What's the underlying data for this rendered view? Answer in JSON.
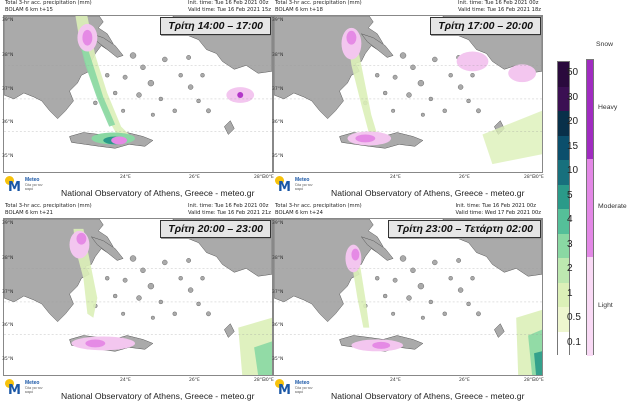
{
  "panels": [
    {
      "meta_left": [
        "Total 3-hr acc. precipitation (mm)",
        "BOLAM 6 km t+15"
      ],
      "meta_right": [
        "Init. time: Tue 16 Feb 2021 00z",
        "Valid time: Tue 16 Feb 2021 15z"
      ],
      "time_range": "Τρίτη 14:00 – 17:00",
      "footer": "National Observatory of Athens, Greece - meteo.gr"
    },
    {
      "meta_left": [
        "Total 3-hr acc. precipitation (mm)",
        "BOLAM 6 km t+18"
      ],
      "meta_right": [
        "Init. time: Tue 16 Feb 2021 00z",
        "Valid time: Tue 16 Feb 2021 18z"
      ],
      "time_range": "Τρίτη 17:00 – 20:00",
      "footer": "National Observatory of Athens, Greece - meteo.gr"
    },
    {
      "meta_left": [
        "Total 3-hr acc. precipitation (mm)",
        "BOLAM 6 km t+21"
      ],
      "meta_right": [
        "Init. time: Tue 16 Feb 2021 00z",
        "Valid time: Tue 16 Feb 2021 21z"
      ],
      "time_range": "Τρίτη 20:00 – 23:00",
      "footer": "National Observatory of Athens, Greece - meteo.gr"
    },
    {
      "meta_left": [
        "Total 3-hr acc. precipitation (mm)",
        "BOLAM 6 km t+24"
      ],
      "meta_right": [
        "Init. time: Tue 16 Feb 2021 00z",
        "Valid time: Wed 17 Feb 2021 00z"
      ],
      "time_range": "Τρίτη 23:00 – Τετάρτη 02:00",
      "footer": "National Observatory of Athens, Greece - meteo.gr"
    }
  ],
  "map_axes": {
    "lat_ticks": [
      "39°N",
      "38°N",
      "37°N",
      "36°N",
      "35°N"
    ],
    "lon_ticks": [
      "24°E",
      "26°E",
      "28°E",
      "30°E"
    ]
  },
  "logo": {
    "name": "Meteo",
    "tagline": "Όλα για τον καιρό"
  },
  "legend": {
    "precip_scale": [
      {
        "label": "50",
        "color": "#2a0a3d"
      },
      {
        "label": "30",
        "color": "#3b1053"
      },
      {
        "label": "20",
        "color": "#08304a"
      },
      {
        "label": "15",
        "color": "#0b4f6c"
      },
      {
        "label": "10",
        "color": "#17707d"
      },
      {
        "label": "5",
        "color": "#2a9a89"
      },
      {
        "label": "4",
        "color": "#55bf99"
      },
      {
        "label": "3",
        "color": "#8ad8a3"
      },
      {
        "label": "2",
        "color": "#bde8b0"
      },
      {
        "label": "1",
        "color": "#dcf0b8"
      },
      {
        "label": "0.5",
        "color": "#eef6cf"
      },
      {
        "label": "0.1",
        "color": "#ffffff"
      }
    ],
    "snow_title": "Snow",
    "snow_scale": [
      {
        "label": "Heavy",
        "color": "#a02cc0"
      },
      {
        "label": "Moderate",
        "color": "#e388e6"
      },
      {
        "label": "Light",
        "color": "#f9daf5"
      }
    ]
  },
  "colors": {
    "land": "#aaaaaa",
    "sea": "#ffffff",
    "snow_light": "#f3c6ef",
    "snow_moderate": "#e58ae5",
    "snow_heavy": "#b236c8",
    "rain_light": "#dcf0b8",
    "rain_mid": "#8ad8a3",
    "rain_high": "#2a9a89"
  }
}
